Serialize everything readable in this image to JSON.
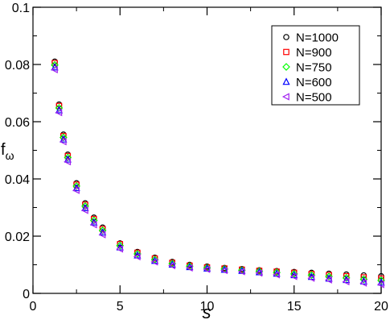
{
  "chart_data": {
    "type": "scatter",
    "title": "",
    "xlabel": "s",
    "ylabel": "f",
    "ylabel_subscript": "ω",
    "xlim": [
      0,
      20
    ],
    "ylim": [
      0,
      0.1
    ],
    "xticks": [
      0,
      5,
      10,
      15,
      20
    ],
    "xtick_labels": [
      "0",
      "5",
      "10",
      "15",
      "20"
    ],
    "yticks": [
      0,
      0.02,
      0.04,
      0.06,
      0.08,
      0.1
    ],
    "ytick_labels": [
      "0",
      "0.02",
      "0.04",
      "0.06",
      "0.08",
      "0.1"
    ],
    "grid": false,
    "legend_position": "top-right",
    "x": [
      1.25,
      1.5,
      1.75,
      2.0,
      2.5,
      3.0,
      3.5,
      4.0,
      5.0,
      6.0,
      7.0,
      8.0,
      9.0,
      10.0,
      11.0,
      12.0,
      13.0,
      14.0,
      15.0,
      16.0,
      17.0,
      18.0,
      19.0,
      20.0
    ],
    "series": [
      {
        "name": "N=1000",
        "marker": "circle",
        "color": "#000000",
        "values": [
          0.081,
          0.066,
          0.0555,
          0.0485,
          0.0385,
          0.0315,
          0.0265,
          0.023,
          0.0175,
          0.0145,
          0.0125,
          0.011,
          0.01,
          0.0094,
          0.0089,
          0.0085,
          0.0081,
          0.0078,
          0.0075,
          0.0072,
          0.0069,
          0.0066,
          0.0063,
          0.006
        ]
      },
      {
        "name": "N=900",
        "marker": "square",
        "color": "#ff0000",
        "values": [
          0.0805,
          0.0655,
          0.055,
          0.048,
          0.038,
          0.031,
          0.026,
          0.0225,
          0.0172,
          0.0142,
          0.0122,
          0.0107,
          0.0097,
          0.0091,
          0.0087,
          0.0083,
          0.0079,
          0.0076,
          0.0072,
          0.0068,
          0.0064,
          0.006,
          0.0056,
          0.0052
        ]
      },
      {
        "name": "N=750",
        "marker": "diamond",
        "color": "#00ff00",
        "values": [
          0.0798,
          0.0648,
          0.0545,
          0.0475,
          0.0375,
          0.0305,
          0.0255,
          0.022,
          0.0167,
          0.0138,
          0.0118,
          0.0104,
          0.0095,
          0.0089,
          0.0085,
          0.0081,
          0.0077,
          0.0073,
          0.0068,
          0.0064,
          0.0059,
          0.0054,
          0.0049,
          0.0045
        ]
      },
      {
        "name": "N=600",
        "marker": "triangle-up",
        "color": "#0000ff",
        "values": [
          0.079,
          0.064,
          0.0538,
          0.0468,
          0.0368,
          0.0298,
          0.0248,
          0.0213,
          0.0161,
          0.0133,
          0.0114,
          0.0101,
          0.0092,
          0.0087,
          0.0083,
          0.0079,
          0.0074,
          0.0069,
          0.0064,
          0.0058,
          0.0052,
          0.0047,
          0.0042,
          0.0038
        ]
      },
      {
        "name": "N=500",
        "marker": "triangle-left",
        "color": "#a020f0",
        "values": [
          0.0782,
          0.0632,
          0.053,
          0.046,
          0.036,
          0.029,
          0.024,
          0.0205,
          0.0155,
          0.0128,
          0.011,
          0.0097,
          0.0089,
          0.0084,
          0.008,
          0.0076,
          0.0071,
          0.0065,
          0.0059,
          0.0053,
          0.0047,
          0.0041,
          0.0036,
          0.0031
        ]
      }
    ]
  }
}
